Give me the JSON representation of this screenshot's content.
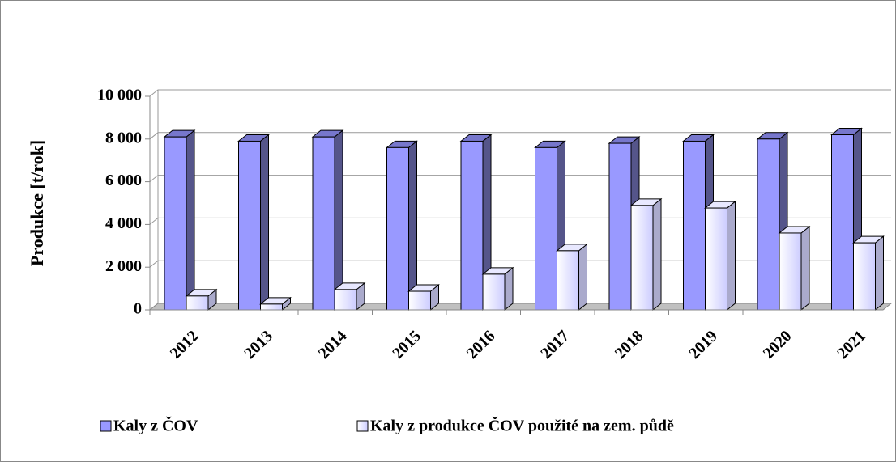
{
  "chart_data": {
    "type": "bar3d",
    "y_label": "Produkce [t/rok]",
    "categories": [
      "2012",
      "2013",
      "2014",
      "2015",
      "2016",
      "2017",
      "2018",
      "2019",
      "2020",
      "2021"
    ],
    "series": [
      {
        "name": "Kaly z ČOV",
        "color": "#9999ff",
        "values": [
          8100,
          7900,
          8100,
          7600,
          7900,
          7600,
          7800,
          7900,
          8000,
          8200
        ]
      },
      {
        "name": "Kaly z produkce ČOV použité na zem. půdě",
        "color": "#ffffff",
        "values": [
          650,
          270,
          950,
          870,
          1670,
          2770,
          4890,
          4770,
          3600,
          3140
        ]
      }
    ],
    "ylim": [
      0,
      10000
    ],
    "yticks": [
      0,
      {
        "value": 2000,
        "label": "2 000"
      },
      {
        "value": 4000,
        "label": "4 000"
      },
      {
        "value": 6000,
        "label": "6 000"
      },
      {
        "value": 8000,
        "label": "8 000"
      },
      {
        "value": 10000,
        "label": "10 000"
      }
    ],
    "grid": true
  }
}
